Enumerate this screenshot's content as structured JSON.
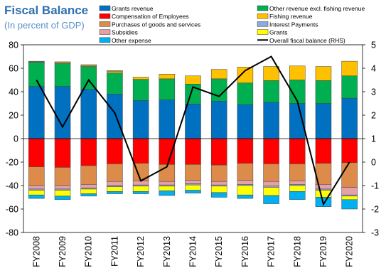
{
  "chart_data": {
    "type": "bar",
    "title": "Fiscal Balance",
    "subtitle": "(In percent of GDP)",
    "categories": [
      "FY2008",
      "FY2009",
      "FY2010",
      "FY2011",
      "FY2012",
      "FY2013",
      "FY2014",
      "FY2015",
      "FY2016",
      "FY2017",
      "FY2018",
      "FY2019",
      "FY2020"
    ],
    "ylim": [
      -80,
      80
    ],
    "yticks": [
      80,
      60,
      40,
      20,
      0,
      -20,
      -40,
      -60,
      -80
    ],
    "y2lim": [
      -3,
      5
    ],
    "y2ticks": [
      5,
      4,
      3,
      2,
      1,
      0,
      -1,
      -2,
      -3
    ],
    "legend_position": "top",
    "positive_series": [
      {
        "name": "Grants revenue",
        "color": "#0070c0",
        "values": [
          44.5,
          44.5,
          42,
          38,
          32.5,
          33,
          29.5,
          32,
          29,
          31,
          30,
          30,
          34.5
        ]
      },
      {
        "name": "Other revenue excl. fishing revenue",
        "color": "#00b050",
        "values": [
          20.5,
          19.5,
          19.5,
          18,
          18,
          18,
          17,
          19,
          18.5,
          18.5,
          20,
          19.5,
          19
        ]
      },
      {
        "name": "Fishing revenue",
        "color": "#ffc000",
        "values": [
          0.5,
          1,
          1,
          1.5,
          2,
          4,
          7,
          8,
          13.5,
          12,
          12,
          12,
          12.5
        ]
      },
      {
        "name": "Interest Payments",
        "color": "#8eaadb",
        "values": [
          0.5,
          0.5,
          0.5,
          0.5,
          0,
          0,
          0,
          0,
          0,
          0,
          0,
          0,
          0
        ]
      }
    ],
    "negative_series": [
      {
        "name": "Compensation of Employees",
        "color": "#ff0000",
        "values": [
          -24,
          -24.5,
          -23,
          -21.5,
          -21,
          -22,
          -22,
          -22.5,
          -21,
          -21.5,
          -21.5,
          -21,
          -20.5
        ]
      },
      {
        "name": "Purchases of goods and services",
        "color": "#dd8b4a",
        "values": [
          -16,
          -15.5,
          -16,
          -15,
          -15,
          -14.5,
          -13.5,
          -14,
          -14.5,
          -15,
          -14.5,
          -18,
          -21
        ]
      },
      {
        "name": "Subsidies",
        "color": "#e6a0a6",
        "values": [
          -3,
          -3,
          -3,
          -3.5,
          -3.5,
          -3,
          -3,
          -3,
          -3.5,
          -4,
          -3,
          -4,
          -6.5
        ]
      },
      {
        "name": "Interest Payments",
        "color": "#8eaadb",
        "values": [
          -1,
          -1,
          -1,
          -1,
          -1,
          -1,
          -1,
          -1,
          -1,
          -1,
          -1,
          -1,
          -1
        ]
      },
      {
        "name": "Grants",
        "color": "#ffff00",
        "values": [
          -4,
          -5,
          -4,
          -4,
          -4.5,
          -4,
          -4.5,
          -5.5,
          -8,
          -7,
          -5,
          -6,
          -3
        ]
      },
      {
        "name": "Other expense",
        "color": "#00b0f0",
        "values": [
          -3,
          -3,
          -2,
          -2,
          -2,
          -4,
          -2.5,
          -4,
          -3,
          -7,
          -7,
          -8,
          -8
        ]
      }
    ],
    "line_series": {
      "name": "Overall fiscal balance (RHS)",
      "color": "#000000",
      "axis": "right",
      "values": [
        3.5,
        1.5,
        3.5,
        2.1,
        -0.8,
        -0.2,
        3.2,
        2.8,
        3.9,
        4.5,
        2.6,
        -1.8,
        0.0
      ]
    },
    "legend": [
      {
        "name": "Grants revenue",
        "color": "#0070c0",
        "kind": "box"
      },
      {
        "name": "Other revenue excl. fishing revenue",
        "color": "#00b050",
        "kind": "box"
      },
      {
        "name": "Compensation of Employees",
        "color": "#ff0000",
        "kind": "box"
      },
      {
        "name": "Fishing revenue",
        "color": "#ffc000",
        "kind": "box"
      },
      {
        "name": "Purchases of goods and services",
        "color": "#dd8b4a",
        "kind": "box"
      },
      {
        "name": "Interest Payments",
        "color": "#8eaadb",
        "kind": "box"
      },
      {
        "name": "Subsidies",
        "color": "#e6a0a6",
        "kind": "box"
      },
      {
        "name": "Grants",
        "color": "#ffff00",
        "kind": "box"
      },
      {
        "name": "Other expense",
        "color": "#00b0f0",
        "kind": "box"
      },
      {
        "name": "Overall fiscal balance (RHS)",
        "color": "#000000",
        "kind": "line"
      }
    ]
  }
}
